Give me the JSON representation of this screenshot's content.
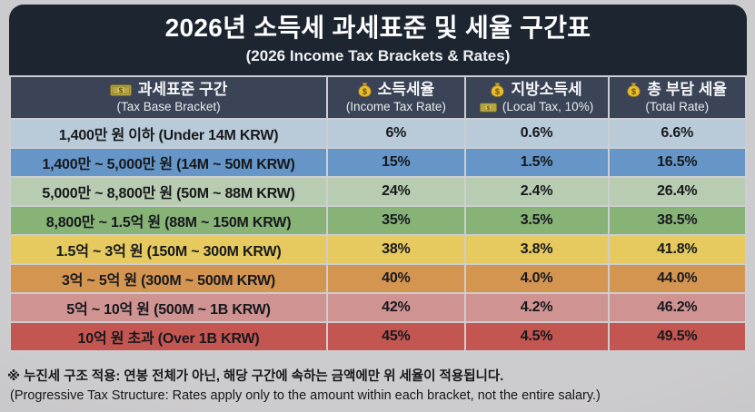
{
  "chart_data": {
    "type": "table",
    "title": "2026년 소득세 과세표준 및 세율 구간표",
    "subtitle": "(2026 Income Tax Brackets & Rates)",
    "columns": [
      {
        "icon": "banknote-icon",
        "ko": "과세표준 구간",
        "en": "(Tax Base Bracket)"
      },
      {
        "icon": "money-bag-icon",
        "ko": "소득세율",
        "en": "(Income Tax Rate)"
      },
      {
        "icon": "money-bag-icon",
        "en_icon": "banknote-icon",
        "ko": "지방소득세",
        "en": "(Local Tax, 10%)"
      },
      {
        "icon": "money-bag-icon",
        "ko": "총 부담 세율",
        "en": "(Total Rate)"
      }
    ],
    "rows": [
      {
        "bracket": "1,400만 원 이하 (Under 14M KRW)",
        "income_tax": "6%",
        "local_tax": "0.6%",
        "total_rate": "6.6%",
        "row_color": "#b9cad9"
      },
      {
        "bracket": "1,400만 ~ 5,000만 원 (14M ~ 50M KRW)",
        "income_tax": "15%",
        "local_tax": "1.5%",
        "total_rate": "16.5%",
        "row_color": "#6596c7"
      },
      {
        "bracket": "5,000만 ~ 8,800만 원 (50M ~ 88M KRW)",
        "income_tax": "24%",
        "local_tax": "2.4%",
        "total_rate": "26.4%",
        "row_color": "#b7ccb0"
      },
      {
        "bracket": "8,800만 ~ 1.5억 원 (88M ~ 150M KRW)",
        "income_tax": "35%",
        "local_tax": "3.5%",
        "total_rate": "38.5%",
        "row_color": "#87b377"
      },
      {
        "bracket": "1.5억 ~ 3억 원 (150M ~ 300M KRW)",
        "income_tax": "38%",
        "local_tax": "3.8%",
        "total_rate": "41.8%",
        "row_color": "#e6ca5f"
      },
      {
        "bracket": "3억 ~ 5억 원 (300M ~ 500M KRW)",
        "income_tax": "40%",
        "local_tax": "4.0%",
        "total_rate": "44.0%",
        "row_color": "#d49551"
      },
      {
        "bracket": "5억 ~ 10억 원 (500M ~ 1B KRW)",
        "income_tax": "42%",
        "local_tax": "4.2%",
        "total_rate": "46.2%",
        "row_color": "#cf9392"
      },
      {
        "bracket": "10억 원 초과 (Over 1B KRW)",
        "income_tax": "45%",
        "local_tax": "4.5%",
        "total_rate": "49.5%",
        "row_color": "#c45651"
      }
    ],
    "legend_position": "none",
    "grid": true
  },
  "footer": {
    "ko": "※ 누진세 구조 적용: 연봉 전체가 아닌, 해당 구간에 속하는 금액에만 위 세율이 적용됩니다.",
    "en": "(Progressive Tax Structure: Rates apply only to the amount within each bracket, not the entire salary.)"
  },
  "colors": {
    "title_bg": "#1d2531",
    "header_bg": "#3a4456",
    "page_bg": "#cccbce",
    "grid_line": "#cdced1",
    "text_dark": "#17191d",
    "text_light": "#f5f6f8"
  }
}
